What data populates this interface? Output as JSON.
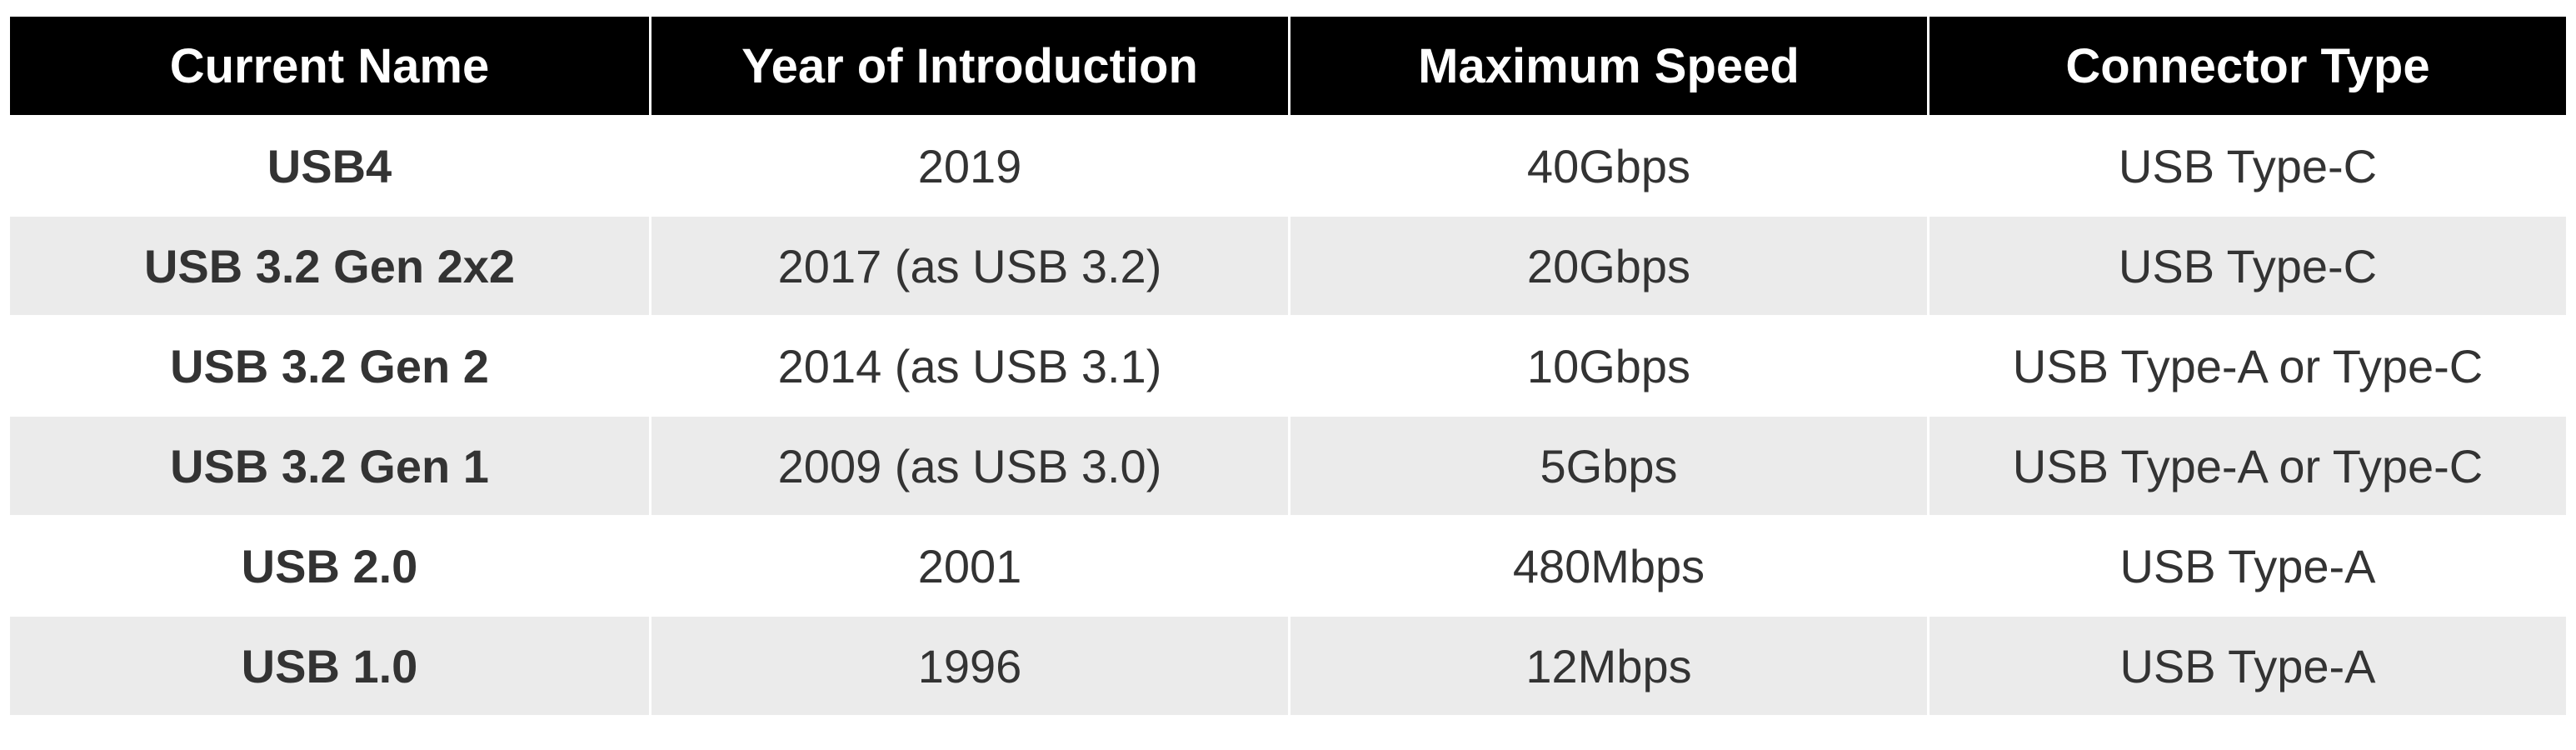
{
  "table": {
    "header": [
      "Current Name",
      "Year of Introduction",
      "Maximum Speed",
      "Connector Type"
    ],
    "rows": [
      [
        "USB4",
        "2019",
        "40Gbps",
        "USB Type-C"
      ],
      [
        "USB 3.2 Gen 2x2",
        "2017 (as USB 3.2)",
        "20Gbps",
        "USB Type-C"
      ],
      [
        "USB 3.2 Gen 2",
        "2014 (as USB 3.1)",
        "10Gbps",
        "USB Type-A or Type-C"
      ],
      [
        "USB 3.2 Gen 1",
        "2009 (as USB 3.0)",
        "5Gbps",
        "USB Type-A or Type-C"
      ],
      [
        "USB 2.0",
        "2001",
        "480Mbps",
        "USB Type-A"
      ],
      [
        "USB 1.0",
        "1996",
        "12Mbps",
        "USB Type-A"
      ]
    ]
  }
}
